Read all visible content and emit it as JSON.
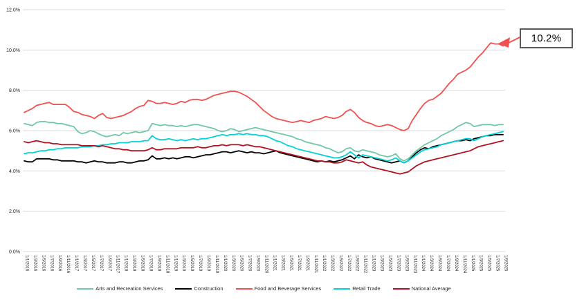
{
  "chart_data": {
    "type": "line",
    "title": "",
    "grid": "horizontal-only",
    "legend_position": "bottom",
    "ylim": [
      0,
      12
    ],
    "y_ticks": [
      "0.0%",
      "2.0%",
      "4.0%",
      "6.0%",
      "8.0%",
      "10.0%",
      "12.0%"
    ],
    "months_per_tick": 2,
    "x_tick_labels": [
      "1/1/2016",
      "1/3/2016",
      "1/5/2016",
      "1/7/2016",
      "1/9/2016",
      "1/11/2016",
      "1/1/2017",
      "1/3/2017",
      "1/5/2017",
      "1/7/2017",
      "1/9/2017",
      "1/11/2017",
      "1/1/2018",
      "1/3/2018",
      "1/5/2018",
      "1/7/2018",
      "1/9/2018",
      "1/11/2018",
      "1/1/2019",
      "1/3/2019",
      "1/5/2019",
      "1/7/2019",
      "1/9/2019",
      "1/11/2019",
      "1/1/2020",
      "1/3/2020",
      "1/5/2020",
      "1/7/2020",
      "1/9/2020",
      "1/11/2020",
      "1/1/2021",
      "1/3/2021",
      "1/5/2021",
      "1/7/2021",
      "1/9/2021",
      "1/11/2021",
      "1/1/2022",
      "1/3/2022",
      "1/5/2022",
      "1/7/2022",
      "1/9/2022",
      "1/11/2022",
      "1/1/2023",
      "1/3/2023",
      "1/5/2023",
      "1/7/2023",
      "1/9/2023",
      "1/11/2023",
      "1/1/2024",
      "1/3/2024",
      "1/5/2024",
      "1/7/2024",
      "1/9/2024",
      "1/11/2024",
      "1/1/2025",
      "1/3/2025",
      "1/5/2025",
      "1/7/2025",
      "1/9/2025"
    ],
    "series": [
      {
        "name": "Arts and Recreation Services",
        "color": "#6FC7A5",
        "values": [
          6.35,
          6.3,
          6.25,
          6.4,
          6.45,
          6.45,
          6.4,
          6.4,
          6.35,
          6.35,
          6.3,
          6.25,
          6.2,
          5.95,
          5.85,
          5.9,
          6.0,
          5.95,
          5.85,
          5.75,
          5.7,
          5.75,
          5.8,
          5.75,
          5.9,
          5.85,
          5.9,
          5.95,
          5.9,
          5.95,
          6.0,
          6.35,
          6.3,
          6.25,
          6.3,
          6.25,
          6.25,
          6.2,
          6.25,
          6.2,
          6.25,
          6.3,
          6.3,
          6.25,
          6.2,
          6.15,
          6.1,
          6.0,
          5.95,
          6.0,
          6.1,
          6.05,
          5.95,
          6.0,
          6.05,
          6.1,
          6.15,
          6.1,
          6.05,
          6.0,
          5.95,
          5.9,
          5.85,
          5.8,
          5.75,
          5.7,
          5.6,
          5.55,
          5.45,
          5.4,
          5.35,
          5.3,
          5.25,
          5.15,
          5.1,
          5.0,
          4.9,
          4.95,
          5.1,
          5.15,
          5.0,
          4.95,
          5.05,
          5.0,
          4.95,
          4.9,
          4.8,
          4.75,
          4.7,
          4.75,
          4.85,
          4.6,
          4.5,
          4.6,
          4.8,
          5.0,
          5.15,
          5.3,
          5.4,
          5.5,
          5.6,
          5.75,
          5.85,
          5.95,
          6.05,
          6.2,
          6.3,
          6.4,
          6.35,
          6.2,
          6.25,
          6.3,
          6.3,
          6.3,
          6.25,
          6.3,
          6.3
        ]
      },
      {
        "name": "Construction",
        "color": "#000000",
        "values": [
          4.5,
          4.45,
          4.45,
          4.6,
          4.6,
          4.6,
          4.6,
          4.55,
          4.55,
          4.5,
          4.5,
          4.5,
          4.5,
          4.45,
          4.45,
          4.4,
          4.45,
          4.5,
          4.45,
          4.45,
          4.4,
          4.4,
          4.4,
          4.45,
          4.45,
          4.4,
          4.4,
          4.45,
          4.5,
          4.5,
          4.55,
          4.75,
          4.6,
          4.6,
          4.65,
          4.6,
          4.65,
          4.6,
          4.65,
          4.7,
          4.7,
          4.65,
          4.7,
          4.75,
          4.8,
          4.8,
          4.85,
          4.9,
          4.95,
          4.95,
          4.9,
          4.95,
          5.0,
          4.95,
          4.9,
          4.95,
          4.9,
          4.9,
          4.85,
          4.9,
          4.95,
          5.0,
          4.9,
          4.85,
          4.8,
          4.75,
          4.7,
          4.65,
          4.6,
          4.55,
          4.5,
          4.45,
          4.5,
          4.45,
          4.5,
          4.45,
          4.5,
          4.55,
          4.65,
          4.75,
          4.6,
          4.8,
          4.7,
          4.65,
          4.7,
          4.6,
          4.55,
          4.5,
          4.45,
          4.4,
          4.45,
          4.5,
          4.4,
          4.5,
          4.7,
          4.9,
          5.05,
          5.15,
          5.1,
          5.2,
          5.25,
          5.3,
          5.35,
          5.4,
          5.45,
          5.5,
          5.5,
          5.55,
          5.5,
          5.6,
          5.65,
          5.7,
          5.75,
          5.75,
          5.8,
          5.8,
          5.8
        ]
      },
      {
        "name": "Food and Beverage Services",
        "color": "#F05050",
        "values": [
          6.9,
          7.0,
          7.1,
          7.25,
          7.3,
          7.35,
          7.4,
          7.3,
          7.3,
          7.3,
          7.3,
          7.15,
          6.95,
          6.9,
          6.8,
          6.75,
          6.7,
          6.6,
          6.75,
          6.85,
          6.65,
          6.6,
          6.65,
          6.7,
          6.75,
          6.85,
          6.95,
          7.1,
          7.2,
          7.25,
          7.5,
          7.45,
          7.35,
          7.35,
          7.4,
          7.35,
          7.3,
          7.35,
          7.45,
          7.4,
          7.5,
          7.55,
          7.55,
          7.5,
          7.55,
          7.65,
          7.75,
          7.8,
          7.85,
          7.9,
          7.95,
          7.95,
          7.9,
          7.8,
          7.7,
          7.55,
          7.4,
          7.2,
          7.0,
          6.85,
          6.7,
          6.6,
          6.55,
          6.5,
          6.45,
          6.4,
          6.45,
          6.5,
          6.45,
          6.4,
          6.5,
          6.55,
          6.6,
          6.7,
          6.65,
          6.6,
          6.65,
          6.75,
          6.95,
          7.05,
          6.9,
          6.65,
          6.5,
          6.4,
          6.35,
          6.25,
          6.2,
          6.25,
          6.3,
          6.25,
          6.15,
          6.05,
          6.0,
          6.1,
          6.5,
          6.8,
          7.1,
          7.35,
          7.5,
          7.55,
          7.7,
          7.85,
          8.1,
          8.35,
          8.55,
          8.8,
          8.9,
          9.0,
          9.15,
          9.4,
          9.65,
          9.85,
          10.1,
          10.35,
          10.3,
          10.3,
          10.2
        ]
      },
      {
        "name": "Retail Trade",
        "color": "#00D2D6",
        "values": [
          4.85,
          4.9,
          4.9,
          4.95,
          5.0,
          5.0,
          5.05,
          5.05,
          5.1,
          5.1,
          5.15,
          5.15,
          5.15,
          5.15,
          5.2,
          5.2,
          5.2,
          5.25,
          5.25,
          5.3,
          5.3,
          5.35,
          5.35,
          5.4,
          5.4,
          5.4,
          5.45,
          5.45,
          5.45,
          5.5,
          5.5,
          5.75,
          5.6,
          5.55,
          5.55,
          5.6,
          5.55,
          5.5,
          5.55,
          5.5,
          5.55,
          5.6,
          5.55,
          5.6,
          5.6,
          5.65,
          5.7,
          5.75,
          5.8,
          5.75,
          5.8,
          5.8,
          5.85,
          5.8,
          5.85,
          5.8,
          5.8,
          5.75,
          5.75,
          5.7,
          5.6,
          5.5,
          5.45,
          5.35,
          5.25,
          5.2,
          5.1,
          5.05,
          5.0,
          4.95,
          4.9,
          4.85,
          4.8,
          4.75,
          4.7,
          4.65,
          4.65,
          4.7,
          4.8,
          4.95,
          4.8,
          4.65,
          4.8,
          4.75,
          4.7,
          4.65,
          4.6,
          4.55,
          4.5,
          4.55,
          4.65,
          4.5,
          4.4,
          4.5,
          4.65,
          4.8,
          4.95,
          5.05,
          5.1,
          5.15,
          5.2,
          5.3,
          5.35,
          5.4,
          5.45,
          5.5,
          5.55,
          5.6,
          5.6,
          5.5,
          5.6,
          5.7,
          5.75,
          5.8,
          5.85,
          5.9,
          5.95
        ]
      },
      {
        "name": "National Average",
        "color": "#B01224",
        "values": [
          5.45,
          5.4,
          5.45,
          5.5,
          5.45,
          5.4,
          5.4,
          5.35,
          5.35,
          5.3,
          5.3,
          5.3,
          5.3,
          5.3,
          5.25,
          5.25,
          5.25,
          5.25,
          5.2,
          5.25,
          5.2,
          5.15,
          5.1,
          5.1,
          5.05,
          5.05,
          5.0,
          5.0,
          5.0,
          5.0,
          5.05,
          5.15,
          5.05,
          5.05,
          5.1,
          5.1,
          5.1,
          5.1,
          5.15,
          5.15,
          5.15,
          5.15,
          5.2,
          5.15,
          5.15,
          5.2,
          5.25,
          5.25,
          5.3,
          5.25,
          5.3,
          5.3,
          5.3,
          5.25,
          5.3,
          5.25,
          5.2,
          5.2,
          5.15,
          5.1,
          5.05,
          5.0,
          4.95,
          4.9,
          4.85,
          4.8,
          4.75,
          4.7,
          4.65,
          4.6,
          4.55,
          4.5,
          4.5,
          4.45,
          4.45,
          4.4,
          4.4,
          4.45,
          4.55,
          4.5,
          4.45,
          4.4,
          4.45,
          4.3,
          4.2,
          4.15,
          4.1,
          4.05,
          4.0,
          3.95,
          3.9,
          3.85,
          3.9,
          3.95,
          4.1,
          4.25,
          4.35,
          4.45,
          4.5,
          4.55,
          4.6,
          4.65,
          4.7,
          4.75,
          4.8,
          4.85,
          4.9,
          4.95,
          5.0,
          5.1,
          5.2,
          5.25,
          5.3,
          5.35,
          5.4,
          5.45,
          5.5
        ]
      }
    ],
    "annotation": {
      "text": "10.2%",
      "target_series": "Food and Beverage Services"
    }
  },
  "colors": {
    "gridline": "#DADADA",
    "axis_text": "#262626",
    "annotation_border": "#595959",
    "annotation_arrow": "#F05050"
  }
}
